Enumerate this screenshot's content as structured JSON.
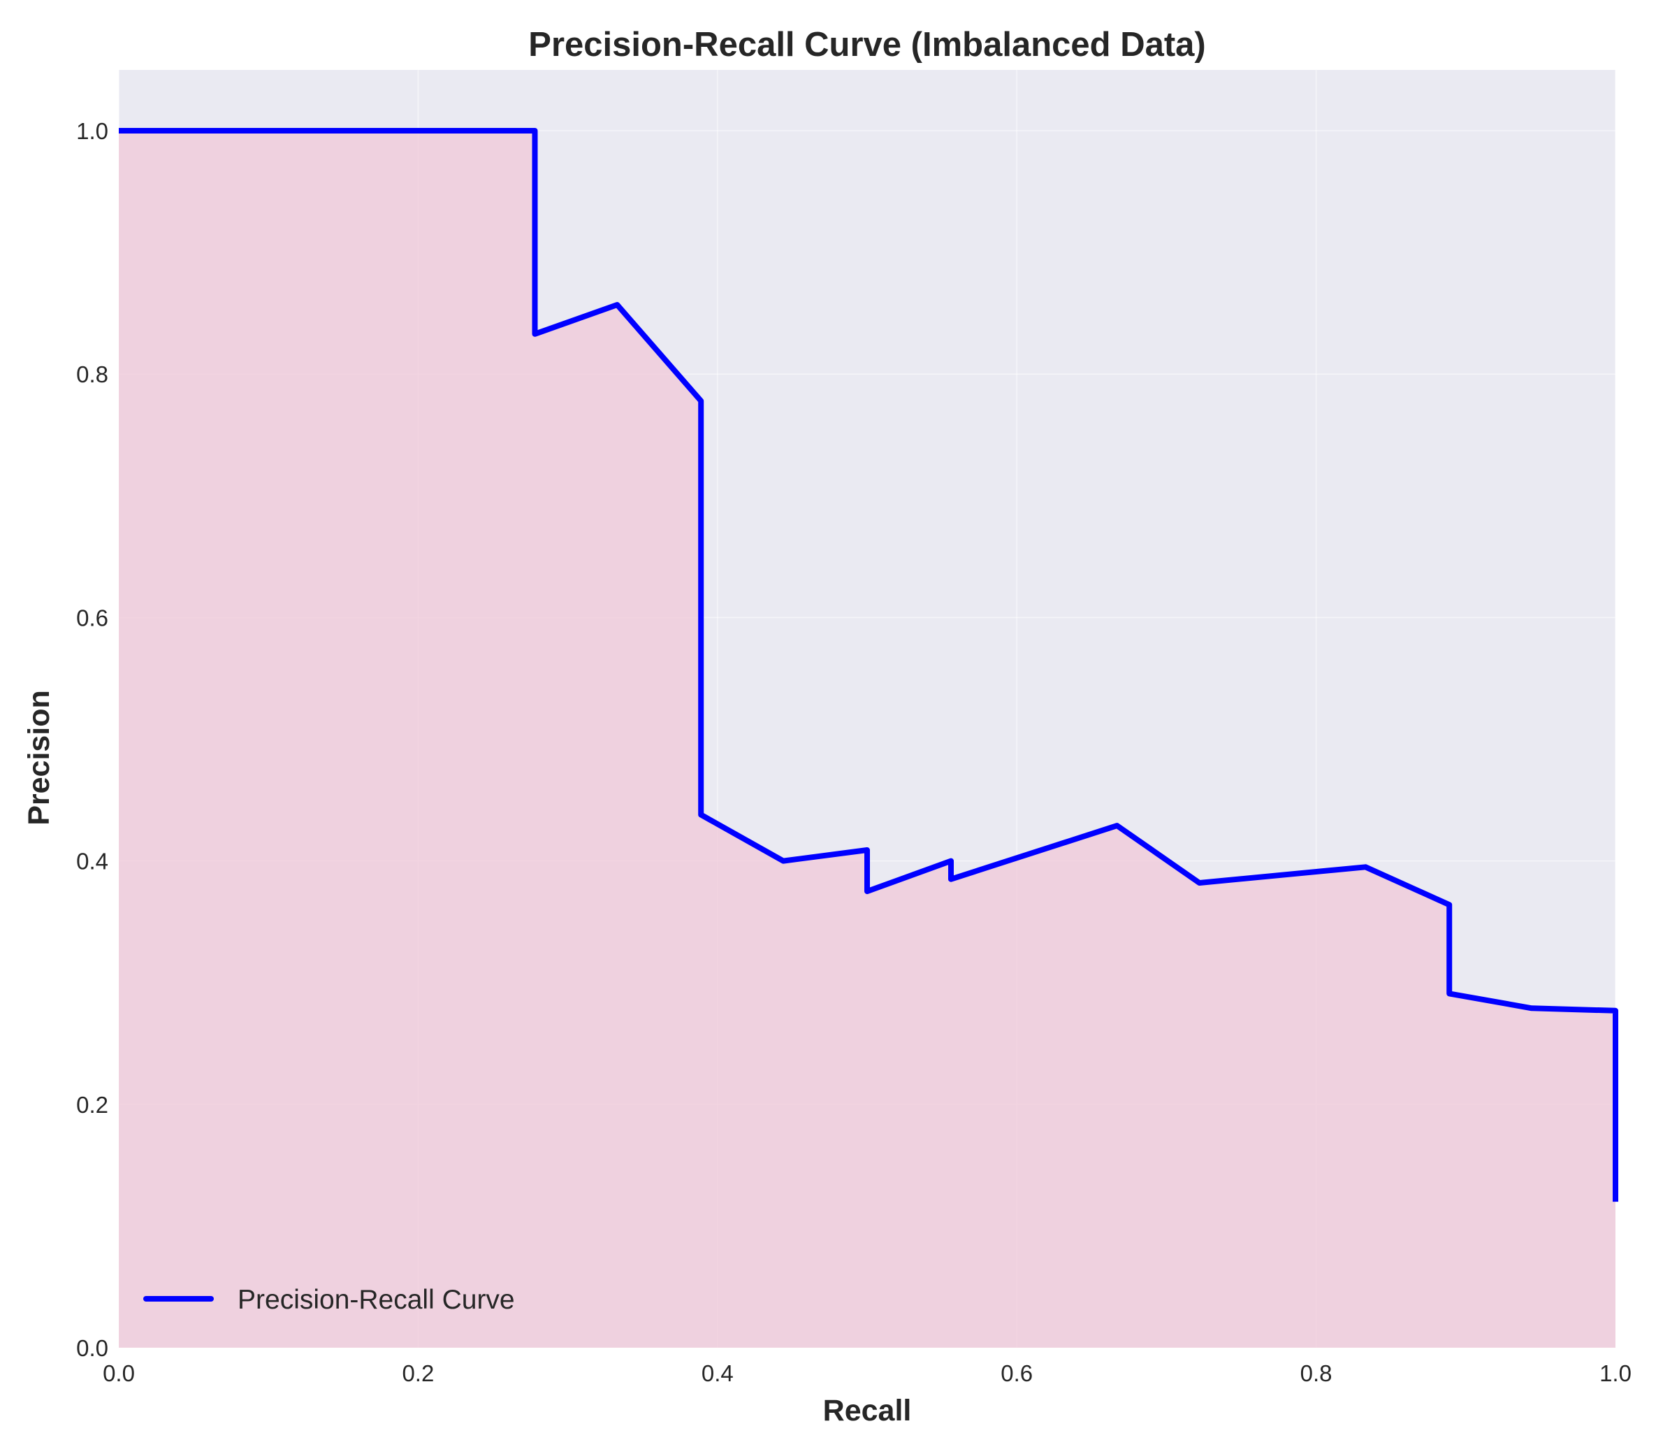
{
  "chart_data": {
    "type": "line",
    "title": "Precision-Recall Curve (Imbalanced Data)",
    "xlabel": "Recall",
    "ylabel": "Precision",
    "xlim": [
      0.0,
      1.0
    ],
    "ylim": [
      0.0,
      1.05
    ],
    "xticks": [
      "0.0",
      "0.2",
      "0.4",
      "0.6",
      "0.8",
      "1.0"
    ],
    "yticks": [
      "0.0",
      "0.2",
      "0.4",
      "0.6",
      "0.8",
      "1.0"
    ],
    "grid": true,
    "legend_position": "lower-left",
    "background_color": "#eaeaf2",
    "fill_color": "#f0c8d8",
    "series": [
      {
        "name": "Precision-Recall Curve",
        "color": "#0000ff",
        "x": [
          0.0,
          0.278,
          0.278,
          0.333,
          0.389,
          0.389,
          0.444,
          0.5,
          0.5,
          0.556,
          0.556,
          0.667,
          0.722,
          0.833,
          0.889,
          0.889,
          0.944,
          1.0,
          1.0
        ],
        "y": [
          1.0,
          1.0,
          0.833,
          0.857,
          0.778,
          0.438,
          0.4,
          0.409,
          0.375,
          0.4,
          0.385,
          0.429,
          0.382,
          0.395,
          0.364,
          0.291,
          0.279,
          0.277,
          0.12
        ]
      }
    ]
  }
}
